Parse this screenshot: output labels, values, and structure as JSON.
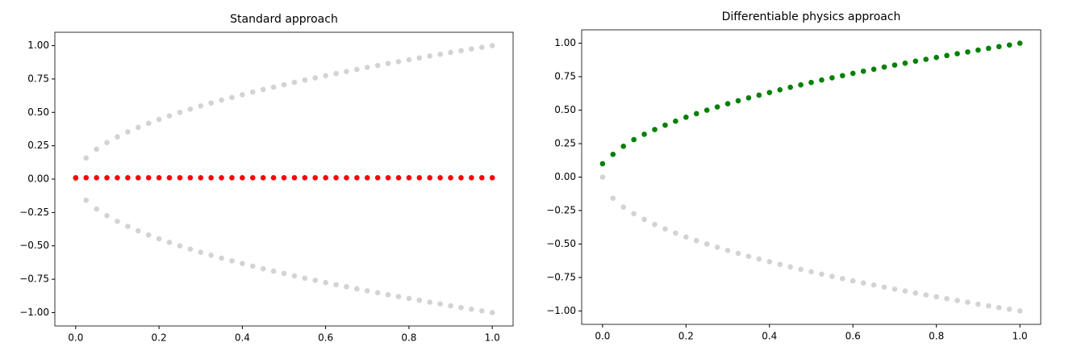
{
  "chart_data": [
    {
      "type": "scatter",
      "title": "Standard approach",
      "x": [
        0,
        0.025,
        0.05,
        0.075,
        0.1,
        0.125,
        0.15,
        0.175,
        0.2,
        0.225,
        0.25,
        0.275,
        0.3,
        0.325,
        0.35,
        0.375,
        0.4,
        0.425,
        0.45,
        0.475,
        0.5,
        0.525,
        0.55,
        0.575,
        0.6,
        0.625,
        0.65,
        0.675,
        0.7,
        0.725,
        0.75,
        0.775,
        0.8,
        0.825,
        0.85,
        0.875,
        0.9,
        0.925,
        0.95,
        0.975,
        1.0
      ],
      "series": [
        {
          "color": "#d3d3d3",
          "values": [
            0,
            0.158,
            0.224,
            0.274,
            0.316,
            0.354,
            0.387,
            0.418,
            0.447,
            0.474,
            0.5,
            0.524,
            0.548,
            0.57,
            0.592,
            0.612,
            0.632,
            0.652,
            0.671,
            0.689,
            0.707,
            0.725,
            0.742,
            0.758,
            0.775,
            0.791,
            0.806,
            0.822,
            0.837,
            0.851,
            0.866,
            0.88,
            0.894,
            0.908,
            0.922,
            0.935,
            0.949,
            0.962,
            0.975,
            0.987,
            1.0
          ]
        },
        {
          "color": "#d3d3d3",
          "values": [
            0,
            -0.158,
            -0.224,
            -0.274,
            -0.316,
            -0.354,
            -0.387,
            -0.418,
            -0.447,
            -0.474,
            -0.5,
            -0.524,
            -0.548,
            -0.57,
            -0.592,
            -0.612,
            -0.632,
            -0.652,
            -0.671,
            -0.689,
            -0.707,
            -0.725,
            -0.742,
            -0.758,
            -0.775,
            -0.791,
            -0.806,
            -0.822,
            -0.837,
            -0.851,
            -0.866,
            -0.88,
            -0.894,
            -0.908,
            -0.922,
            -0.935,
            -0.949,
            -0.962,
            -0.975,
            -0.987,
            -1.0
          ]
        },
        {
          "color": "#ff0000",
          "values": [
            0.01,
            0.01,
            0.01,
            0.01,
            0.01,
            0.01,
            0.01,
            0.01,
            0.01,
            0.01,
            0.01,
            0.01,
            0.01,
            0.01,
            0.01,
            0.01,
            0.01,
            0.01,
            0.01,
            0.01,
            0.01,
            0.01,
            0.01,
            0.01,
            0.01,
            0.01,
            0.01,
            0.01,
            0.01,
            0.01,
            0.01,
            0.01,
            0.01,
            0.01,
            0.01,
            0.01,
            0.01,
            0.01,
            0.01,
            0.01,
            0.01
          ]
        }
      ],
      "xlim": [
        -0.05,
        1.05
      ],
      "ylim": [
        -1.1,
        1.1
      ],
      "xticks": [
        {
          "value": 0,
          "label": "0.0"
        },
        {
          "value": 0.2,
          "label": "0.2"
        },
        {
          "value": 0.4,
          "label": "0.4"
        },
        {
          "value": 0.6,
          "label": "0.6"
        },
        {
          "value": 0.8,
          "label": "0.8"
        },
        {
          "value": 1,
          "label": "1.0"
        }
      ],
      "yticks": [
        {
          "value": -1,
          "label": "−1.00"
        },
        {
          "value": -0.75,
          "label": "−0.75"
        },
        {
          "value": -0.5,
          "label": "−0.50"
        },
        {
          "value": -0.25,
          "label": "−0.25"
        },
        {
          "value": 0,
          "label": "0.00"
        },
        {
          "value": 0.25,
          "label": "0.25"
        },
        {
          "value": 0.5,
          "label": "0.50"
        },
        {
          "value": 0.75,
          "label": "0.75"
        },
        {
          "value": 1,
          "label": "1.00"
        }
      ]
    },
    {
      "type": "scatter",
      "title": "Differentiable physics approach",
      "x": [
        0,
        0.025,
        0.05,
        0.075,
        0.1,
        0.125,
        0.15,
        0.175,
        0.2,
        0.225,
        0.25,
        0.275,
        0.3,
        0.325,
        0.35,
        0.375,
        0.4,
        0.425,
        0.45,
        0.475,
        0.5,
        0.525,
        0.55,
        0.575,
        0.6,
        0.625,
        0.65,
        0.675,
        0.7,
        0.725,
        0.75,
        0.775,
        0.8,
        0.825,
        0.85,
        0.875,
        0.9,
        0.925,
        0.95,
        0.975,
        1.0
      ],
      "series": [
        {
          "color": "#d3d3d3",
          "values": [
            0,
            -0.158,
            -0.224,
            -0.274,
            -0.316,
            -0.354,
            -0.387,
            -0.418,
            -0.447,
            -0.474,
            -0.5,
            -0.524,
            -0.548,
            -0.57,
            -0.592,
            -0.612,
            -0.632,
            -0.652,
            -0.671,
            -0.689,
            -0.707,
            -0.725,
            -0.742,
            -0.758,
            -0.775,
            -0.791,
            -0.806,
            -0.822,
            -0.837,
            -0.851,
            -0.866,
            -0.88,
            -0.894,
            -0.908,
            -0.922,
            -0.935,
            -0.949,
            -0.962,
            -0.975,
            -0.987,
            -1.0
          ]
        },
        {
          "color": "#008000",
          "values": [
            0.1,
            0.17,
            0.23,
            0.28,
            0.32,
            0.355,
            0.388,
            0.418,
            0.447,
            0.474,
            0.5,
            0.524,
            0.548,
            0.57,
            0.592,
            0.612,
            0.632,
            0.652,
            0.671,
            0.689,
            0.707,
            0.725,
            0.742,
            0.758,
            0.775,
            0.791,
            0.806,
            0.822,
            0.837,
            0.851,
            0.866,
            0.88,
            0.894,
            0.908,
            0.922,
            0.935,
            0.949,
            0.962,
            0.975,
            0.987,
            1.0
          ]
        }
      ],
      "xlim": [
        -0.05,
        1.05
      ],
      "ylim": [
        -1.1,
        1.1
      ],
      "xticks": [
        {
          "value": 0,
          "label": "0.0"
        },
        {
          "value": 0.2,
          "label": "0.2"
        },
        {
          "value": 0.4,
          "label": "0.4"
        },
        {
          "value": 0.6,
          "label": "0.6"
        },
        {
          "value": 0.8,
          "label": "0.8"
        },
        {
          "value": 1,
          "label": "1.0"
        }
      ],
      "yticks": [
        {
          "value": -1,
          "label": "−1.00"
        },
        {
          "value": -0.75,
          "label": "−0.75"
        },
        {
          "value": -0.5,
          "label": "−0.50"
        },
        {
          "value": -0.25,
          "label": "−0.25"
        },
        {
          "value": 0,
          "label": "0.00"
        },
        {
          "value": 0.25,
          "label": "0.25"
        },
        {
          "value": 0.5,
          "label": "0.50"
        },
        {
          "value": 0.75,
          "label": "0.75"
        },
        {
          "value": 1,
          "label": "1.00"
        }
      ]
    }
  ]
}
